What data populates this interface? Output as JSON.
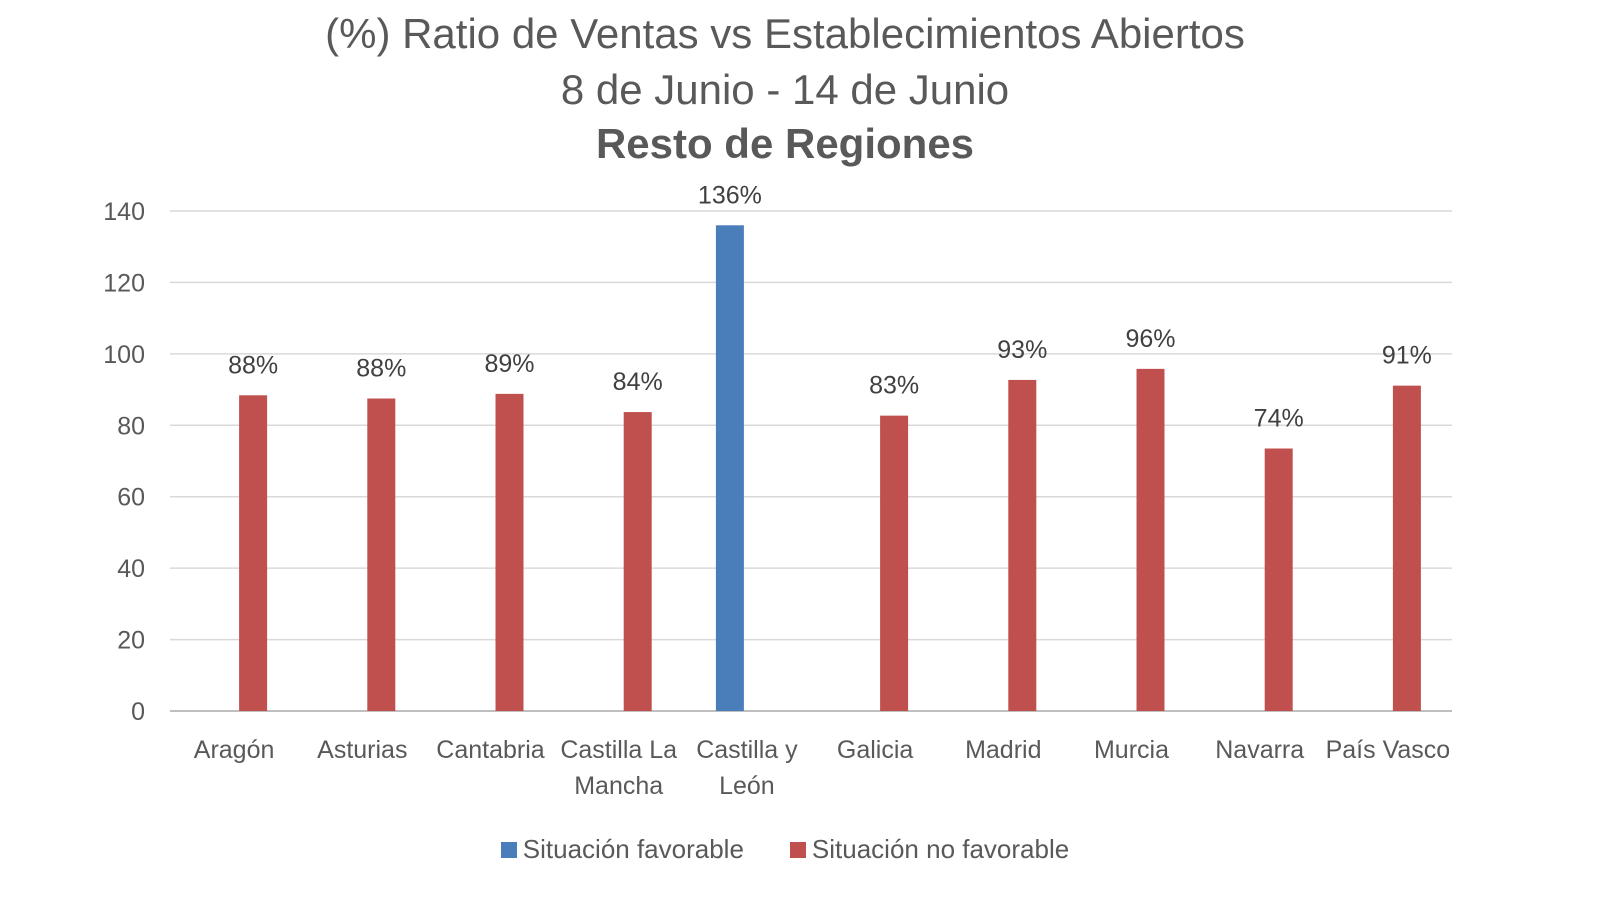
{
  "chart_data": {
    "type": "bar",
    "title": "(%) Ratio de Ventas vs Establecimientos  Abiertos",
    "subtitle": "8 de Junio - 14 de Junio",
    "subtitle2": "Resto de Regiones",
    "xlabel": "",
    "ylabel": "",
    "ylim": [
      0,
      140
    ],
    "yticks": [
      0,
      20,
      40,
      60,
      80,
      100,
      120,
      140
    ],
    "grid": true,
    "legend_position": "bottom",
    "categories": [
      [
        "Aragón"
      ],
      [
        "Asturias"
      ],
      [
        "Cantabria"
      ],
      [
        "Castilla La",
        "Mancha"
      ],
      [
        "Castilla y",
        "León"
      ],
      [
        "Galicia"
      ],
      [
        "Madrid"
      ],
      [
        "Murcia"
      ],
      [
        "Navarra"
      ],
      [
        "País Vasco"
      ]
    ],
    "series": [
      {
        "name": "Situación favorable",
        "color": "#4a7ebb",
        "values": [
          null,
          null,
          null,
          null,
          136,
          null,
          null,
          null,
          null,
          null
        ],
        "labels": [
          null,
          null,
          null,
          null,
          "136%",
          null,
          null,
          null,
          null,
          null
        ]
      },
      {
        "name": "Situación no favorable",
        "color": "#c0504d",
        "values": [
          88.4,
          87.5,
          88.8,
          83.7,
          null,
          82.7,
          92.7,
          95.8,
          73.5,
          91.1
        ],
        "labels": [
          "88%",
          "88%",
          "89%",
          "84%",
          null,
          "83%",
          "93%",
          "96%",
          "74%",
          "91%"
        ]
      }
    ]
  }
}
